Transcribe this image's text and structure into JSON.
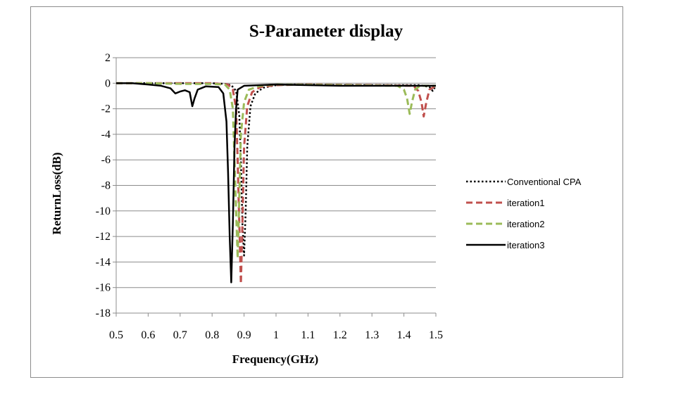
{
  "chart_data": {
    "type": "line",
    "title": "S-Parameter display",
    "xlabel": "Frequency(GHz)",
    "ylabel": "ReturnLoss(dB)",
    "xlim": [
      0.5,
      1.5
    ],
    "ylim": [
      -18,
      2
    ],
    "x_ticks": [
      "0.5",
      "0.6",
      "0.7",
      "0.8",
      "0.9",
      "1",
      "1.1",
      "1.2",
      "1.3",
      "1.4",
      "1.5"
    ],
    "y_ticks": [
      "2",
      "0",
      "-2",
      "-4",
      "-6",
      "-8",
      "-10",
      "-12",
      "-14",
      "-16",
      "-18"
    ],
    "grid": "horizontal",
    "legend_position": "right",
    "series": [
      {
        "name": "Conventional CPA",
        "color": "#000000",
        "style": "dotted",
        "points": [
          [
            0.5,
            0
          ],
          [
            0.8,
            0
          ],
          [
            0.84,
            -0.05
          ],
          [
            0.86,
            -0.15
          ],
          [
            0.875,
            -0.6
          ],
          [
            0.885,
            -2.5
          ],
          [
            0.89,
            -6
          ],
          [
            0.895,
            -11
          ],
          [
            0.9,
            -13.5
          ],
          [
            0.905,
            -10
          ],
          [
            0.91,
            -5
          ],
          [
            0.92,
            -1.8
          ],
          [
            0.935,
            -0.8
          ],
          [
            0.96,
            -0.35
          ],
          [
            1.0,
            -0.15
          ],
          [
            1.05,
            -0.1
          ],
          [
            1.1,
            -0.1
          ],
          [
            1.2,
            -0.15
          ],
          [
            1.35,
            -0.15
          ],
          [
            1.45,
            -0.15
          ],
          [
            1.48,
            -0.3
          ],
          [
            1.49,
            -0.6
          ],
          [
            1.5,
            -0.2
          ]
        ]
      },
      {
        "name": "iteration1",
        "color": "#c0504d",
        "style": "dashed",
        "points": [
          [
            0.5,
            0
          ],
          [
            0.8,
            0
          ],
          [
            0.85,
            -0.1
          ],
          [
            0.865,
            -0.5
          ],
          [
            0.875,
            -2
          ],
          [
            0.88,
            -6
          ],
          [
            0.885,
            -11
          ],
          [
            0.89,
            -15.7
          ],
          [
            0.895,
            -11
          ],
          [
            0.9,
            -5
          ],
          [
            0.91,
            -1.8
          ],
          [
            0.925,
            -0.7
          ],
          [
            0.95,
            -0.3
          ],
          [
            1.0,
            -0.15
          ],
          [
            1.1,
            -0.1
          ],
          [
            1.3,
            -0.15
          ],
          [
            1.43,
            -0.2
          ],
          [
            1.445,
            -0.6
          ],
          [
            1.455,
            -1.5
          ],
          [
            1.462,
            -2.6
          ],
          [
            1.47,
            -1.5
          ],
          [
            1.48,
            -0.5
          ],
          [
            1.5,
            -0.2
          ]
        ]
      },
      {
        "name": "iteration2",
        "color": "#9bbb59",
        "style": "dashed",
        "points": [
          [
            0.5,
            0
          ],
          [
            0.6,
            0
          ],
          [
            0.7,
            -0.05
          ],
          [
            0.8,
            -0.05
          ],
          [
            0.84,
            -0.1
          ],
          [
            0.855,
            -0.5
          ],
          [
            0.865,
            -2
          ],
          [
            0.87,
            -6
          ],
          [
            0.875,
            -10
          ],
          [
            0.88,
            -13.7
          ],
          [
            0.885,
            -9
          ],
          [
            0.89,
            -4
          ],
          [
            0.9,
            -1.5
          ],
          [
            0.915,
            -0.5
          ],
          [
            0.95,
            -0.2
          ],
          [
            1.0,
            -0.1
          ],
          [
            1.2,
            -0.15
          ],
          [
            1.38,
            -0.2
          ],
          [
            1.4,
            -0.5
          ],
          [
            1.41,
            -1.2
          ],
          [
            1.418,
            -2.4
          ],
          [
            1.425,
            -1.5
          ],
          [
            1.435,
            -0.5
          ],
          [
            1.45,
            -0.2
          ],
          [
            1.5,
            -0.2
          ]
        ]
      },
      {
        "name": "iteration3",
        "color": "#000000",
        "style": "solid",
        "points": [
          [
            0.5,
            0
          ],
          [
            0.55,
            0
          ],
          [
            0.6,
            -0.1
          ],
          [
            0.64,
            -0.2
          ],
          [
            0.67,
            -0.4
          ],
          [
            0.685,
            -0.8
          ],
          [
            0.7,
            -0.65
          ],
          [
            0.715,
            -0.55
          ],
          [
            0.73,
            -0.7
          ],
          [
            0.738,
            -1.8
          ],
          [
            0.745,
            -1.2
          ],
          [
            0.755,
            -0.5
          ],
          [
            0.78,
            -0.25
          ],
          [
            0.82,
            -0.3
          ],
          [
            0.835,
            -0.8
          ],
          [
            0.845,
            -3
          ],
          [
            0.85,
            -7
          ],
          [
            0.855,
            -12
          ],
          [
            0.86,
            -15.6
          ],
          [
            0.865,
            -11
          ],
          [
            0.87,
            -5
          ],
          [
            0.875,
            -2
          ],
          [
            0.88,
            -0.5
          ],
          [
            0.9,
            -0.2
          ],
          [
            1.0,
            -0.1
          ],
          [
            1.2,
            -0.2
          ],
          [
            1.45,
            -0.2
          ],
          [
            1.5,
            -0.2
          ]
        ]
      }
    ]
  }
}
